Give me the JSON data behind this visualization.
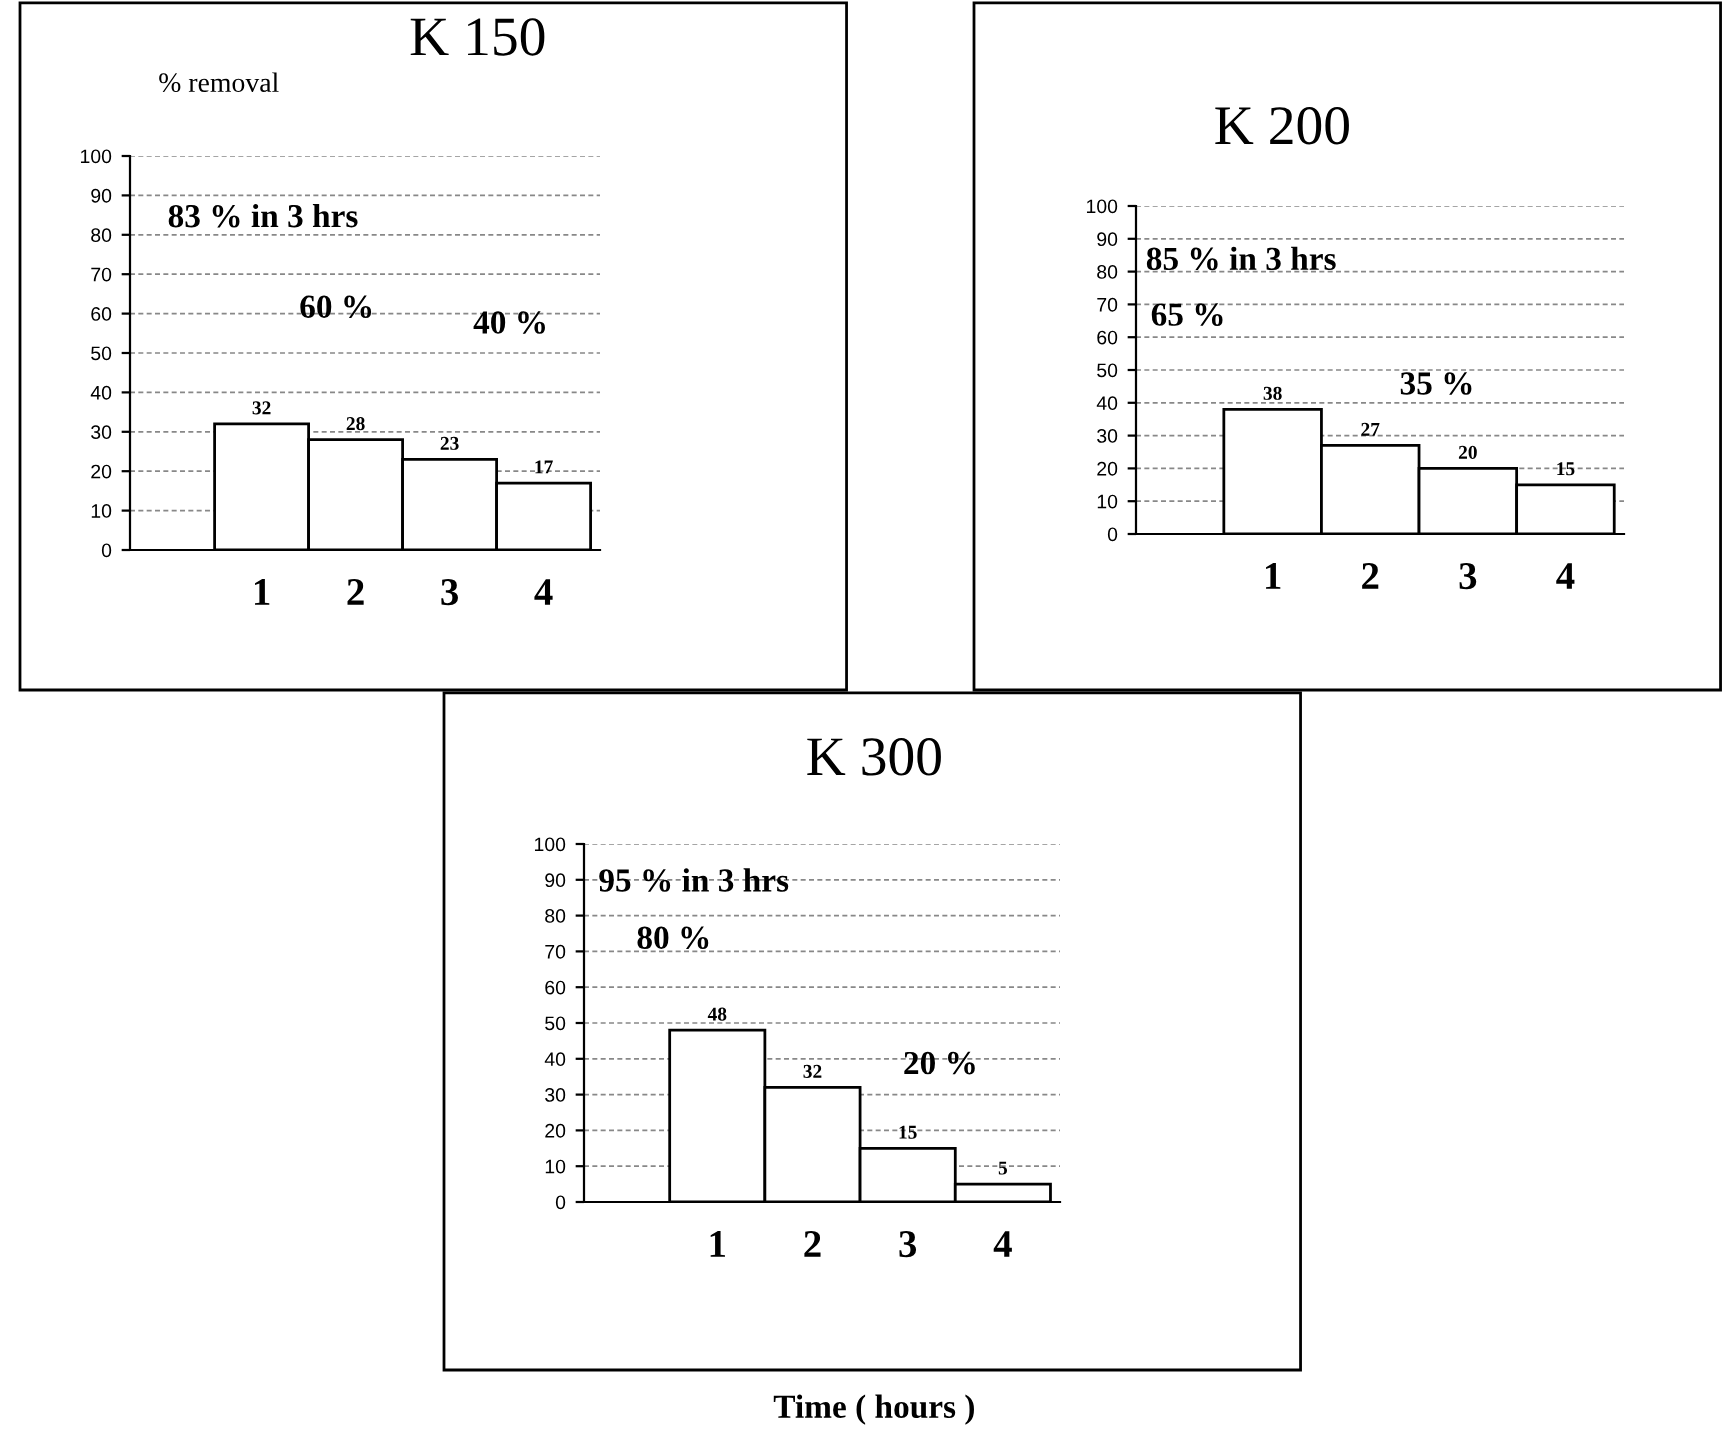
{
  "chart_data": [
    {
      "type": "bar",
      "title": "K 150",
      "ylabel": "% removal",
      "categories": [
        "1",
        "2",
        "3",
        "4"
      ],
      "values": [
        32,
        28,
        23,
        17
      ],
      "color": "#ffffff",
      "ylim": [
        0,
        100
      ],
      "yticks": [
        0,
        10,
        20,
        30,
        40,
        50,
        60,
        70,
        80,
        90,
        100
      ],
      "grid": "y",
      "data_labels": true,
      "legend": false,
      "annotations": [
        "83 % in 3 hrs",
        "60 %",
        "40 %"
      ]
    },
    {
      "type": "bar",
      "title": "K 200",
      "categories": [
        "1",
        "2",
        "3",
        "4"
      ],
      "values": [
        38,
        27,
        20,
        15
      ],
      "color": "#ffffff",
      "ylim": [
        0,
        100
      ],
      "yticks": [
        0,
        10,
        20,
        30,
        40,
        50,
        60,
        70,
        80,
        90,
        100
      ],
      "grid": "y",
      "data_labels": true,
      "legend": false,
      "annotations": [
        "85 % in 3 hrs",
        "65 %",
        "35 %"
      ]
    },
    {
      "type": "bar",
      "title": "K 300",
      "xlabel": "Time ( hours )",
      "categories": [
        "1",
        "2",
        "3",
        "4"
      ],
      "values": [
        48,
        32,
        15,
        5
      ],
      "color": "#ffffff",
      "ylim": [
        0,
        100
      ],
      "yticks": [
        0,
        10,
        20,
        30,
        40,
        50,
        60,
        70,
        80,
        90,
        100
      ],
      "grid": "y",
      "data_labels": true,
      "legend": false,
      "annotations": [
        "95 % in 3 hrs",
        "80 %",
        "20 %"
      ]
    }
  ]
}
